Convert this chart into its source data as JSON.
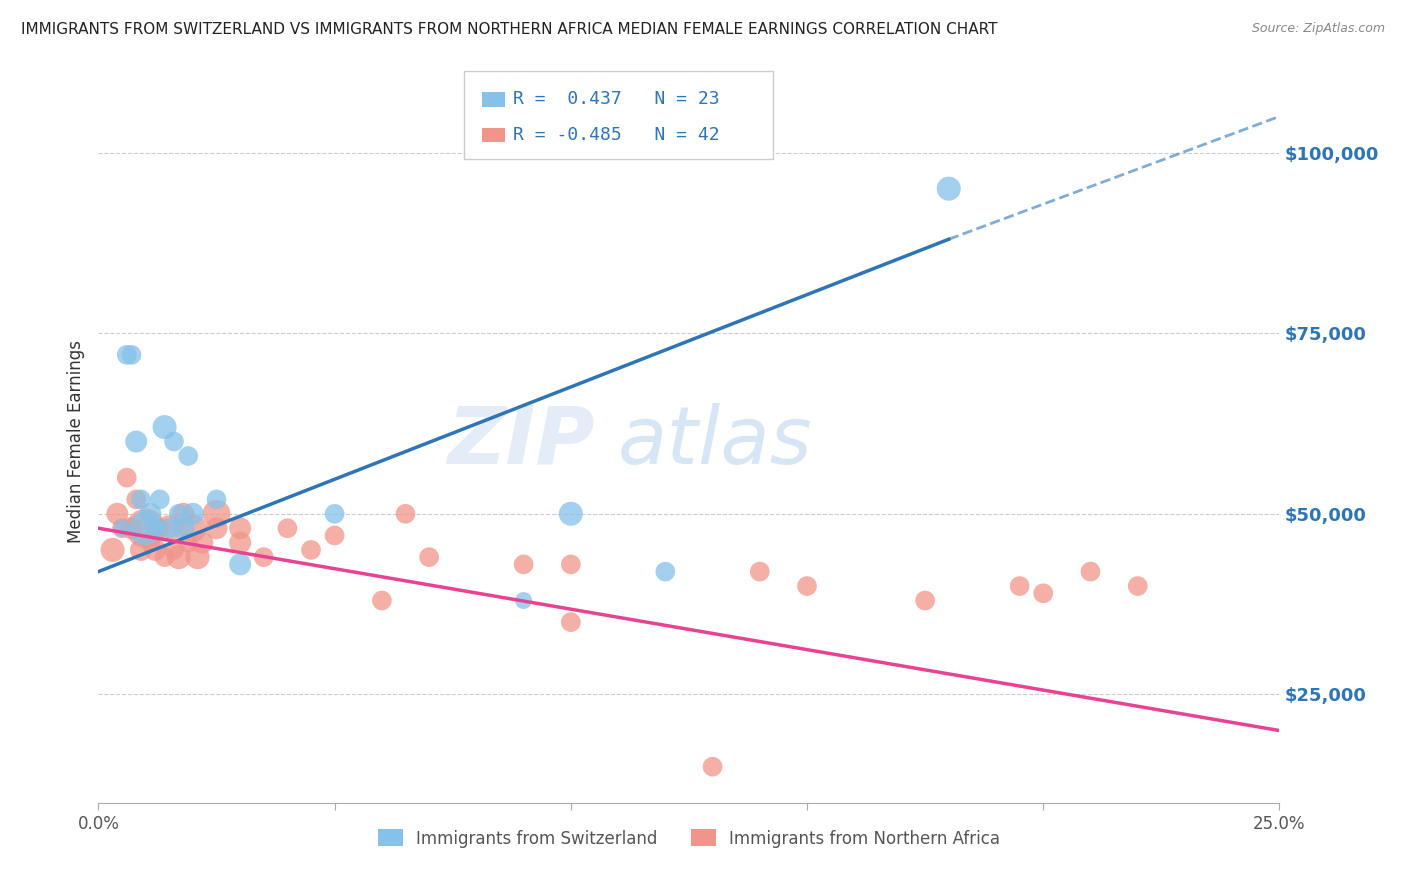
{
  "title": "IMMIGRANTS FROM SWITZERLAND VS IMMIGRANTS FROM NORTHERN AFRICA MEDIAN FEMALE EARNINGS CORRELATION CHART",
  "source": "Source: ZipAtlas.com",
  "ylabel": "Median Female Earnings",
  "legend_r1": "R =  0.437   N = 23",
  "legend_r2": "R = -0.485   N = 42",
  "legend_label1": "Immigrants from Switzerland",
  "legend_label2": "Immigrants from Northern Africa",
  "watermark_zip": "ZIP",
  "watermark_atlas": "atlas",
  "yticks_right": [
    "$25,000",
    "$50,000",
    "$75,000",
    "$100,000"
  ],
  "yticks_values": [
    25000,
    50000,
    75000,
    100000
  ],
  "xlim": [
    0.0,
    0.25
  ],
  "ylim": [
    10000,
    110000
  ],
  "color_swiss": "#85C1E9",
  "color_nafrica": "#F1948A",
  "color_swiss_line": "#2E75B6",
  "color_nafrica_line": "#E84393",
  "color_axis_right": "#2E75B6",
  "color_legend_text": "#2E75B6",
  "swiss_line_x0": 0.0,
  "swiss_line_y0": 42000,
  "swiss_line_x1": 0.18,
  "swiss_line_y1": 88000,
  "swiss_line_xdash": 0.18,
  "swiss_line_ydash": 88000,
  "swiss_line_x2": 0.25,
  "swiss_line_y2": 105000,
  "nafrica_line_x0": 0.0,
  "nafrica_line_y0": 48000,
  "nafrica_line_x1": 0.25,
  "nafrica_line_y1": 20000,
  "swiss_x": [
    0.005,
    0.006,
    0.007,
    0.008,
    0.009,
    0.01,
    0.011,
    0.012,
    0.013,
    0.014,
    0.015,
    0.016,
    0.017,
    0.018,
    0.019,
    0.02,
    0.025,
    0.03,
    0.05,
    0.09,
    0.1,
    0.12,
    0.18
  ],
  "swiss_y": [
    48000,
    72000,
    72000,
    60000,
    52000,
    48000,
    50000,
    48000,
    52000,
    62000,
    48000,
    60000,
    50000,
    48000,
    58000,
    50000,
    52000,
    43000,
    50000,
    38000,
    50000,
    42000,
    95000
  ],
  "swiss_size": [
    150,
    200,
    200,
    250,
    200,
    600,
    250,
    200,
    200,
    300,
    200,
    200,
    200,
    250,
    200,
    250,
    200,
    250,
    200,
    150,
    300,
    200,
    300
  ],
  "nafrica_x": [
    0.003,
    0.004,
    0.005,
    0.006,
    0.007,
    0.008,
    0.009,
    0.01,
    0.011,
    0.012,
    0.013,
    0.014,
    0.015,
    0.016,
    0.017,
    0.018,
    0.019,
    0.02,
    0.021,
    0.022,
    0.025,
    0.025,
    0.03,
    0.03,
    0.035,
    0.04,
    0.045,
    0.05,
    0.06,
    0.065,
    0.07,
    0.09,
    0.1,
    0.1,
    0.13,
    0.14,
    0.15,
    0.175,
    0.195,
    0.2,
    0.21,
    0.22
  ],
  "nafrica_y": [
    45000,
    50000,
    48000,
    55000,
    48000,
    52000,
    45000,
    48000,
    46000,
    45000,
    48000,
    44000,
    48000,
    45000,
    44000,
    50000,
    46000,
    48000,
    44000,
    46000,
    48000,
    50000,
    46000,
    48000,
    44000,
    48000,
    45000,
    47000,
    38000,
    50000,
    44000,
    43000,
    35000,
    43000,
    15000,
    42000,
    40000,
    38000,
    40000,
    39000,
    42000,
    40000
  ],
  "nafrica_size": [
    300,
    250,
    200,
    200,
    250,
    200,
    250,
    800,
    200,
    250,
    200,
    200,
    350,
    200,
    300,
    250,
    200,
    400,
    300,
    250,
    250,
    400,
    250,
    250,
    200,
    200,
    200,
    200,
    200,
    200,
    200,
    200,
    200,
    200,
    200,
    200,
    200,
    200,
    200,
    200,
    200,
    200
  ]
}
